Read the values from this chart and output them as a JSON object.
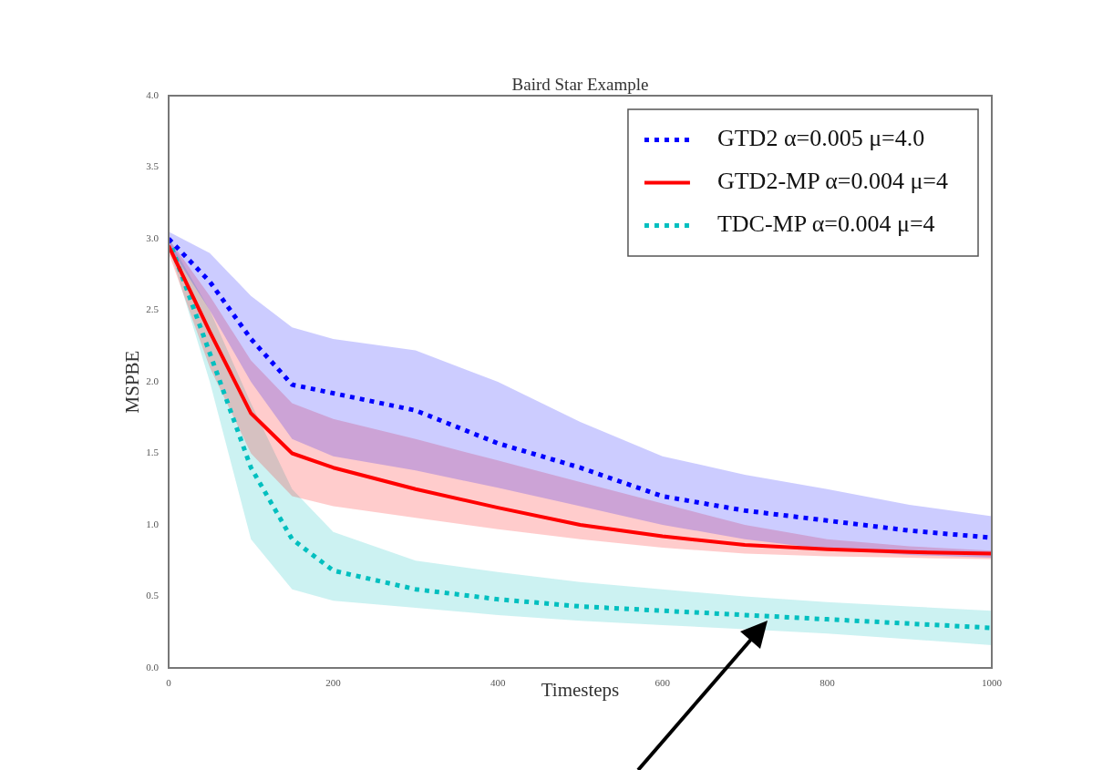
{
  "chart_data": {
    "type": "line",
    "title": "Baird Star Example",
    "xlabel": "Timesteps",
    "ylabel": "MSPBE",
    "x": [
      0,
      50,
      100,
      150,
      200,
      300,
      400,
      500,
      600,
      700,
      800,
      900,
      1000
    ],
    "series": [
      {
        "name": "GTD2 α=0.005 μ=4.0",
        "color": "#0000ff",
        "line_style": "dotted",
        "values": [
          3.0,
          2.7,
          2.3,
          1.98,
          1.92,
          1.8,
          1.57,
          1.4,
          1.2,
          1.1,
          1.03,
          0.96,
          0.91
        ],
        "upper": [
          3.05,
          2.9,
          2.6,
          2.38,
          2.3,
          2.22,
          2.0,
          1.72,
          1.48,
          1.35,
          1.25,
          1.14,
          1.06
        ],
        "lower": [
          2.95,
          2.5,
          2.0,
          1.6,
          1.48,
          1.38,
          1.26,
          1.13,
          1.0,
          0.9,
          0.83,
          0.79,
          0.77
        ]
      },
      {
        "name": "GTD2-MP α=0.004 μ=4",
        "color": "#ff0000",
        "line_style": "solid",
        "values": [
          2.95,
          2.35,
          1.78,
          1.5,
          1.4,
          1.25,
          1.12,
          1.0,
          0.92,
          0.86,
          0.83,
          0.81,
          0.8
        ],
        "upper": [
          3.0,
          2.6,
          2.15,
          1.85,
          1.74,
          1.6,
          1.45,
          1.3,
          1.15,
          1.0,
          0.9,
          0.85,
          0.82
        ],
        "lower": [
          2.9,
          2.1,
          1.5,
          1.2,
          1.13,
          1.05,
          0.97,
          0.9,
          0.84,
          0.8,
          0.78,
          0.77,
          0.76
        ]
      },
      {
        "name": "TDC-MP α=0.004 μ=4",
        "color": "#00bfbf",
        "line_style": "dotted",
        "values": [
          3.0,
          2.2,
          1.4,
          0.9,
          0.68,
          0.55,
          0.48,
          0.43,
          0.4,
          0.37,
          0.34,
          0.31,
          0.28
        ],
        "upper": [
          3.0,
          2.5,
          1.85,
          1.25,
          0.95,
          0.75,
          0.67,
          0.6,
          0.55,
          0.5,
          0.46,
          0.43,
          0.4
        ],
        "lower": [
          2.95,
          2.0,
          0.9,
          0.55,
          0.47,
          0.42,
          0.37,
          0.33,
          0.3,
          0.27,
          0.24,
          0.2,
          0.16
        ]
      }
    ],
    "xlim": [
      0,
      1000
    ],
    "xticks": [
      0,
      200,
      400,
      600,
      800,
      1000
    ],
    "ylim": [
      0,
      4
    ],
    "yticks": [
      {
        "value": 0,
        "label": "0.0"
      },
      {
        "value": 0.5,
        "label": "0.5"
      },
      {
        "value": 1,
        "label": "1.0"
      },
      {
        "value": 1.5,
        "label": "1.5"
      },
      {
        "value": 2,
        "label": "2.0"
      },
      {
        "value": 2.5,
        "label": "2.5"
      },
      {
        "value": 3,
        "label": "3.0"
      },
      {
        "value": 3.5,
        "label": "3.5"
      },
      {
        "value": 4,
        "label": "4.0"
      }
    ],
    "legend": "top right",
    "grid": false
  }
}
